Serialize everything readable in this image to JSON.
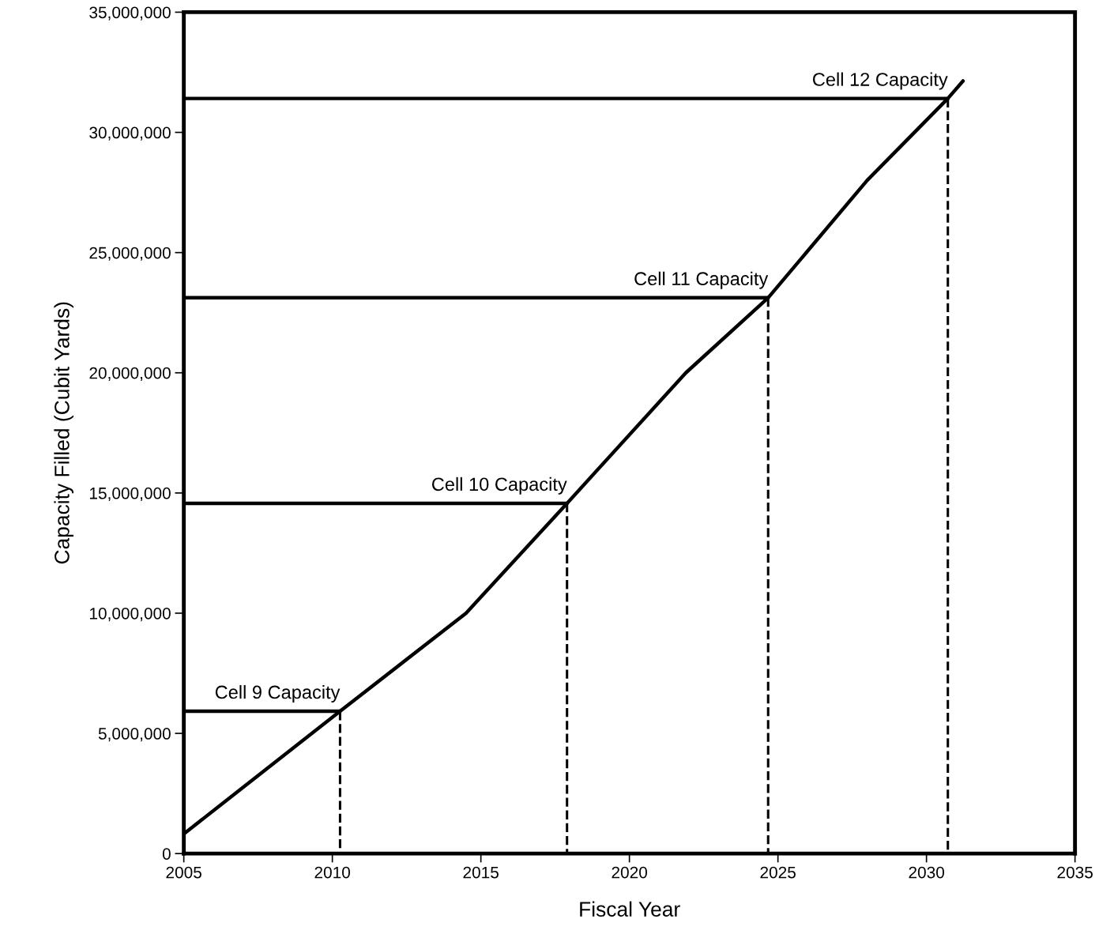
{
  "chart_data": {
    "type": "line",
    "xlabel": "Fiscal Year",
    "ylabel": "Capacity Filled (Cubit Yards)",
    "xlim": [
      2005,
      2035
    ],
    "xticks": [
      2005,
      2010,
      2015,
      2020,
      2025,
      2030,
      2035
    ],
    "ylim": [
      0,
      35000000
    ],
    "yticks": [
      0,
      {
        "value": 5000000,
        "label": "5,000,000"
      },
      {
        "value": 10000000,
        "label": "10,000,000"
      },
      {
        "value": 15000000,
        "label": "15,000,000"
      },
      {
        "value": 20000000,
        "label": "20,000,000"
      },
      {
        "value": 25000000,
        "label": "25,000,000"
      },
      {
        "value": 30000000,
        "label": "30,000,000"
      },
      {
        "value": 35000000,
        "label": "35,000,000"
      }
    ],
    "grid": false,
    "marker": "none",
    "series": [
      {
        "color": "#000000",
        "line_style": "solid",
        "x": [
          2005,
          2010.26,
          2014.5,
          2017.9,
          2021.9,
          2024.67,
          2028.0,
          2030.72,
          2031.23
        ],
        "values": [
          820000,
          5920000,
          10000000,
          14570000,
          20000000,
          23120000,
          28000000,
          31410000,
          32140000
        ]
      },
      {
        "color": "#000000",
        "line_style": "solid",
        "x": [
          2005,
          2010.26
        ],
        "values": [
          5920000,
          5920000
        ]
      },
      {
        "color": "#000000",
        "line_style": "solid",
        "x": [
          2005,
          2017.9
        ],
        "values": [
          14570000,
          14570000
        ]
      },
      {
        "color": "#000000",
        "line_style": "solid",
        "x": [
          2005,
          2024.67
        ],
        "values": [
          23120000,
          23120000
        ]
      },
      {
        "color": "#000000",
        "line_style": "solid",
        "x": [
          2005,
          2030.72
        ],
        "values": [
          31410000,
          31410000
        ]
      },
      {
        "color": "#000000",
        "line_style": "dashed",
        "x": [
          2010.26,
          2010.26
        ],
        "values": [
          5920000,
          0
        ]
      },
      {
        "color": "#000000",
        "line_style": "dashed",
        "x": [
          2017.9,
          2017.9
        ],
        "values": [
          14570000,
          0
        ]
      },
      {
        "color": "#000000",
        "line_style": "dashed",
        "x": [
          2024.67,
          2024.67
        ],
        "values": [
          23120000,
          0
        ]
      },
      {
        "color": "#000000",
        "line_style": "dashed",
        "x": [
          2030.72,
          2030.72
        ],
        "values": [
          31410000,
          0
        ]
      }
    ],
    "annotations": [
      {
        "text": "Cell 9 Capacity",
        "x": 2010.26,
        "y": 5920000
      },
      {
        "text": "Cell 10 Capacity",
        "x": 2017.9,
        "y": 14570000
      },
      {
        "text": "Cell 11 Capacity",
        "x": 2024.67,
        "y": 23120000
      },
      {
        "text": "Cell 12 Capacity",
        "x": 2030.72,
        "y": 31410000
      }
    ]
  }
}
